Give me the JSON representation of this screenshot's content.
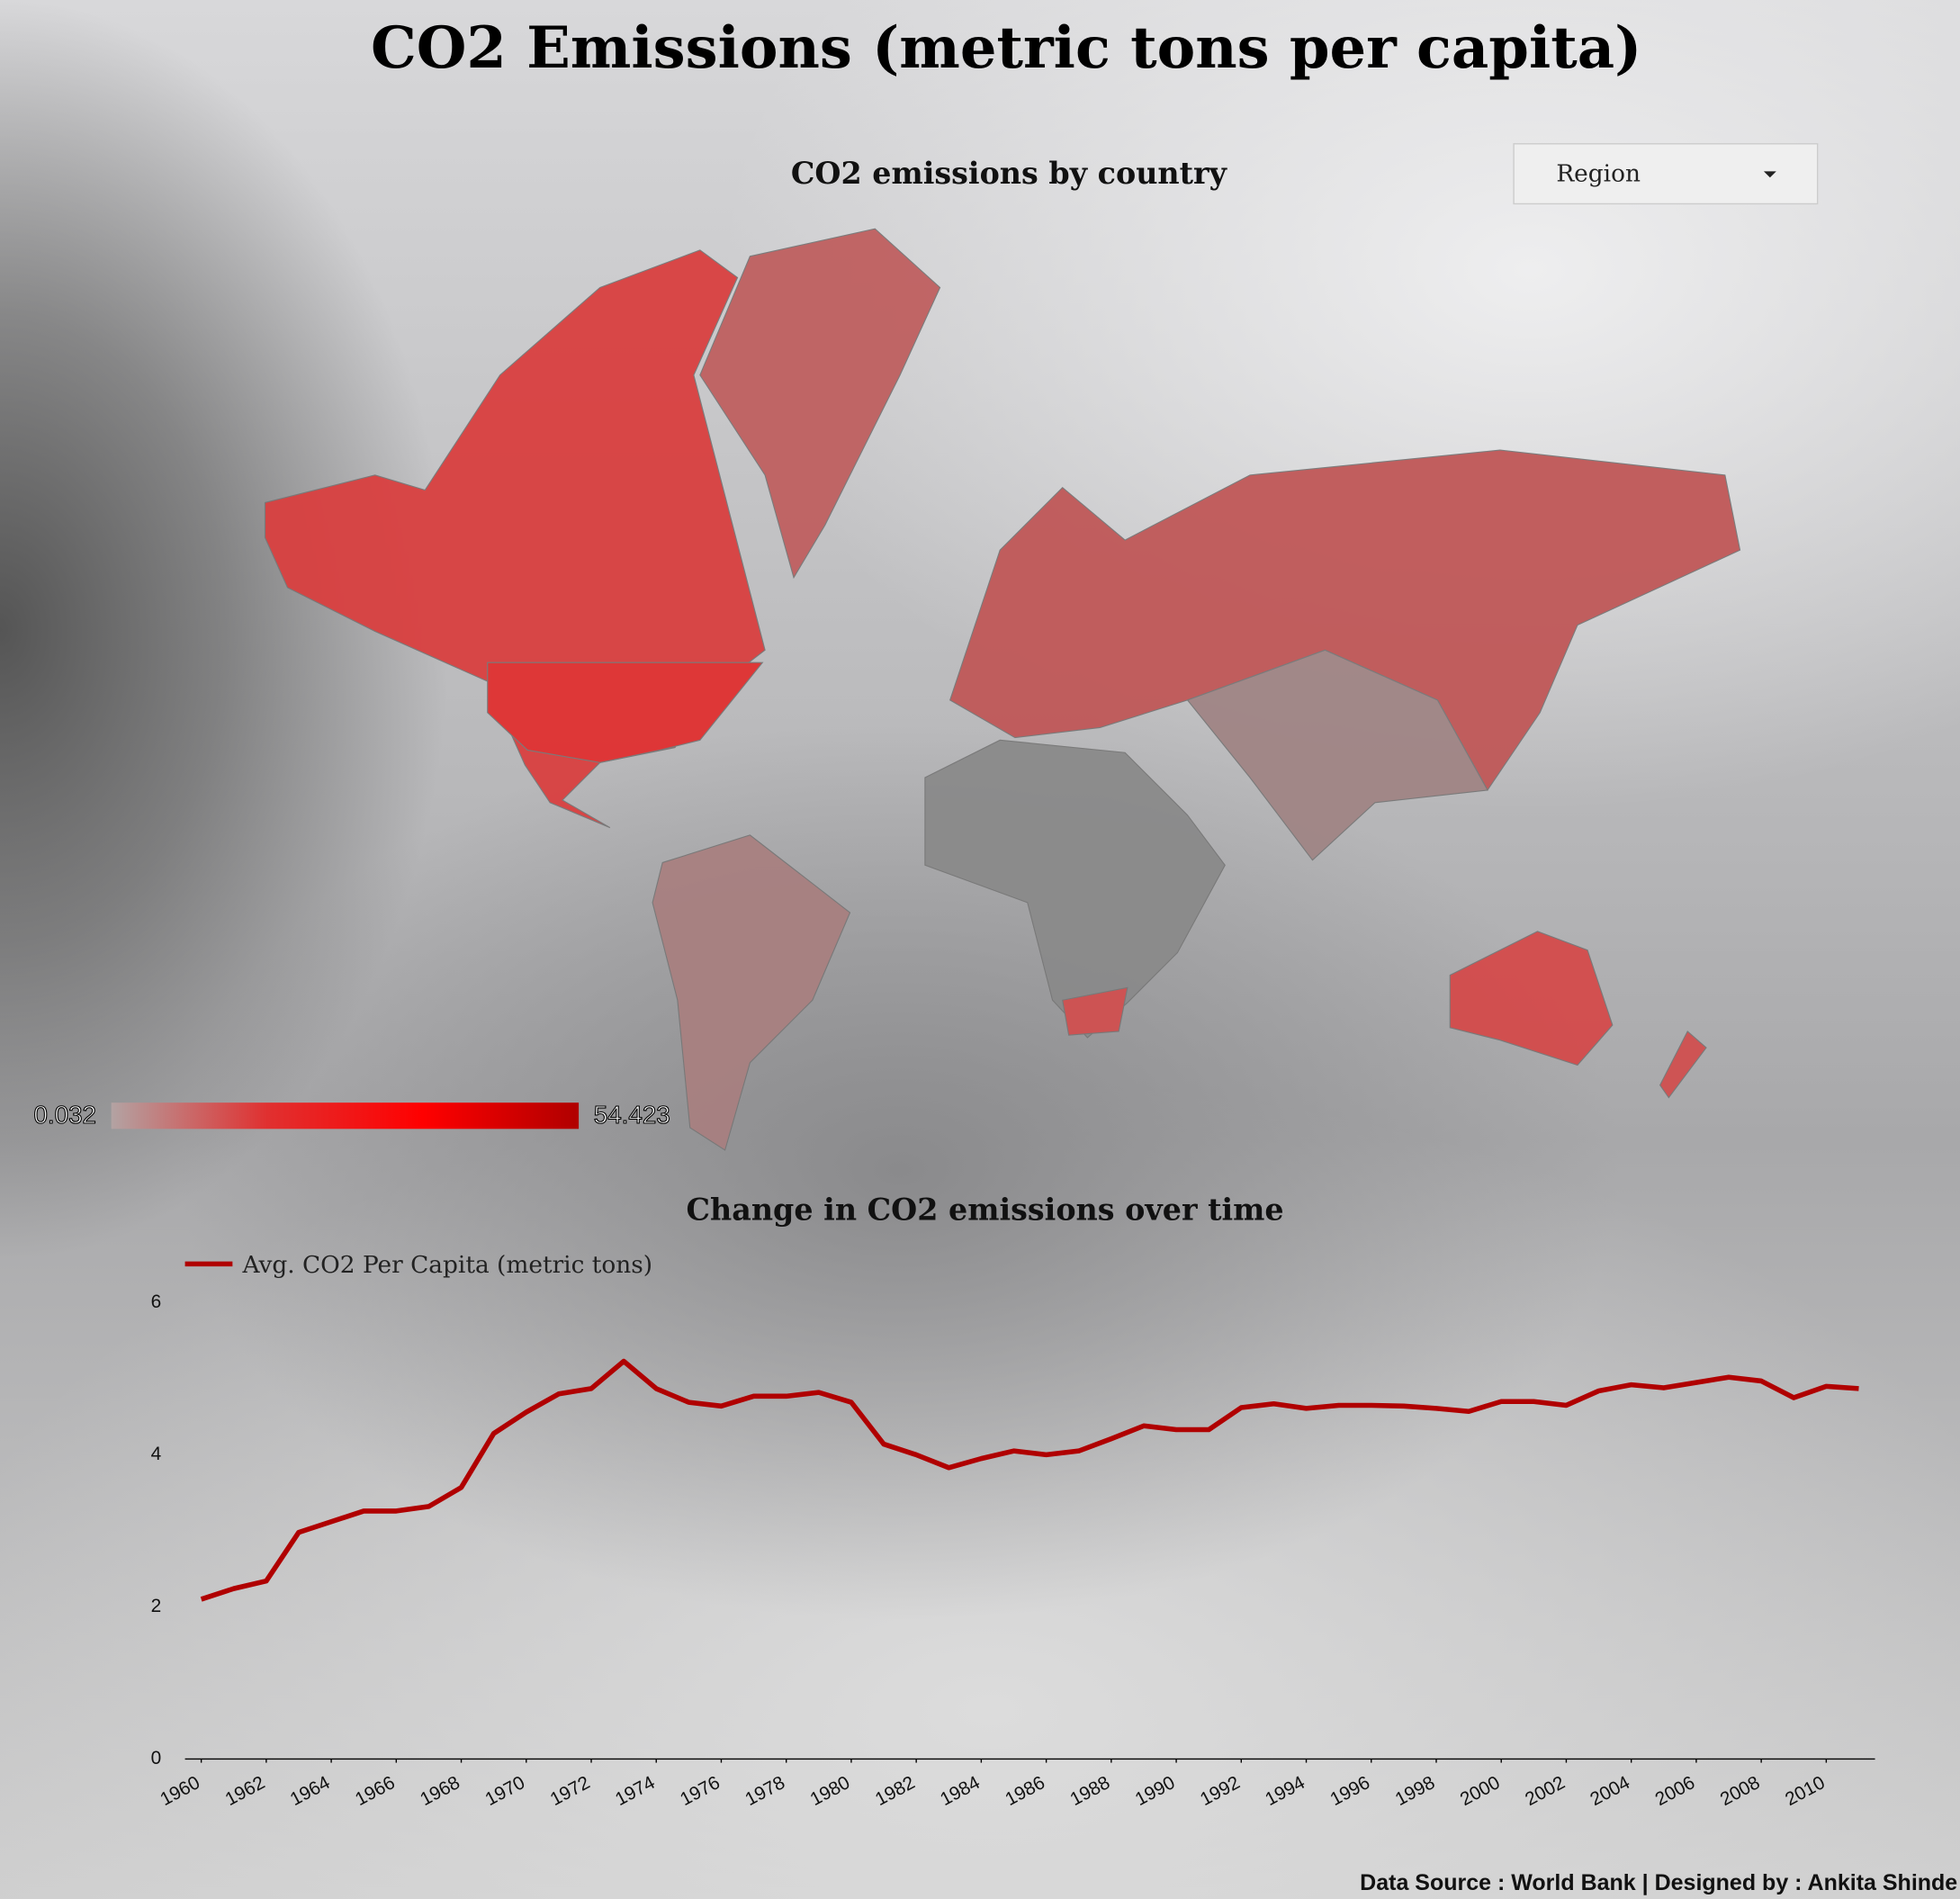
{
  "header": {
    "title": "CO2 Emissions (metric tons per capita)"
  },
  "controls": {
    "region": "Region"
  },
  "chart_data": [
    {
      "type": "map",
      "title": "CO2 emissions by country",
      "scale": {
        "min": 0.032,
        "max": 54.423,
        "colors": [
          "#b3a3a3",
          "#e03030",
          "#ff0000",
          "#b00000"
        ]
      }
    },
    {
      "type": "line",
      "title": "Change in CO2 emissions over time",
      "x": [
        1960,
        1961,
        1962,
        1963,
        1964,
        1965,
        1966,
        1967,
        1968,
        1969,
        1970,
        1971,
        1972,
        1973,
        1974,
        1975,
        1976,
        1977,
        1978,
        1979,
        1980,
        1981,
        1982,
        1983,
        1984,
        1985,
        1986,
        1987,
        1988,
        1989,
        1990,
        1991,
        1992,
        1993,
        1994,
        1995,
        1996,
        1997,
        1998,
        1999,
        2000,
        2001,
        2002,
        2003,
        2004,
        2005,
        2006,
        2007,
        2008,
        2009,
        2010,
        2011
      ],
      "series": [
        {
          "name": "Avg. CO2 Per Capita (metric tons)",
          "color": "#b00000",
          "values": [
            2.1,
            2.24,
            2.34,
            2.98,
            3.12,
            3.26,
            3.26,
            3.32,
            3.57,
            4.28,
            4.56,
            4.8,
            4.87,
            5.23,
            4.87,
            4.69,
            4.64,
            4.77,
            4.77,
            4.82,
            4.69,
            4.14,
            4.0,
            3.83,
            3.95,
            4.05,
            4.0,
            4.05,
            4.21,
            4.38,
            4.33,
            4.33,
            4.62,
            4.67,
            4.61,
            4.65,
            4.65,
            4.64,
            4.61,
            4.57,
            4.7,
            4.7,
            4.65,
            4.84,
            4.92,
            4.88,
            4.95,
            5.02,
            4.97,
            4.75,
            4.9,
            4.87
          ]
        }
      ],
      "xlim": [
        1959.5,
        2011.5
      ],
      "xticks": [
        1960,
        1962,
        1964,
        1966,
        1968,
        1970,
        1972,
        1974,
        1976,
        1978,
        1980,
        1982,
        1984,
        1986,
        1988,
        1990,
        1992,
        1994,
        1996,
        1998,
        2000,
        2002,
        2004,
        2006,
        2008,
        2010
      ],
      "ylim": [
        0,
        6
      ],
      "yticks": [
        0,
        2,
        4,
        6
      ],
      "grid": false
    }
  ],
  "footer": "Data Source : World Bank | Designed by : Ankita Shinde"
}
